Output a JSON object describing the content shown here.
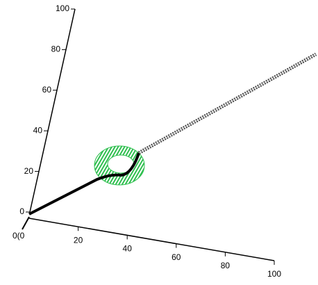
{
  "chart_data": {
    "type": "plot3d",
    "zticks": [
      0,
      20,
      40,
      60,
      80,
      100
    ],
    "xticks": [
      20,
      40,
      60,
      80,
      100
    ],
    "zlim": [
      0,
      100
    ],
    "xlim": [
      0,
      100
    ],
    "depth_tick_label": "0(0",
    "surface_color": "#2fbf4f",
    "curve_color": "#000000"
  }
}
